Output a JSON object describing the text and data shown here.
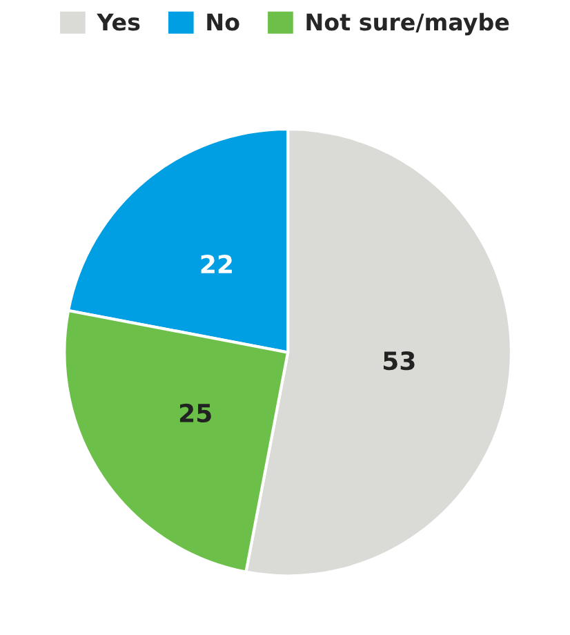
{
  "chart_data": {
    "type": "pie",
    "categories": [
      "Yes",
      "No",
      "Not sure/maybe"
    ],
    "values": [
      53,
      22,
      25
    ],
    "colors": [
      "#dadad7",
      "#009fe3",
      "#6cc04a"
    ],
    "data_labels": true,
    "legend": "top"
  }
}
